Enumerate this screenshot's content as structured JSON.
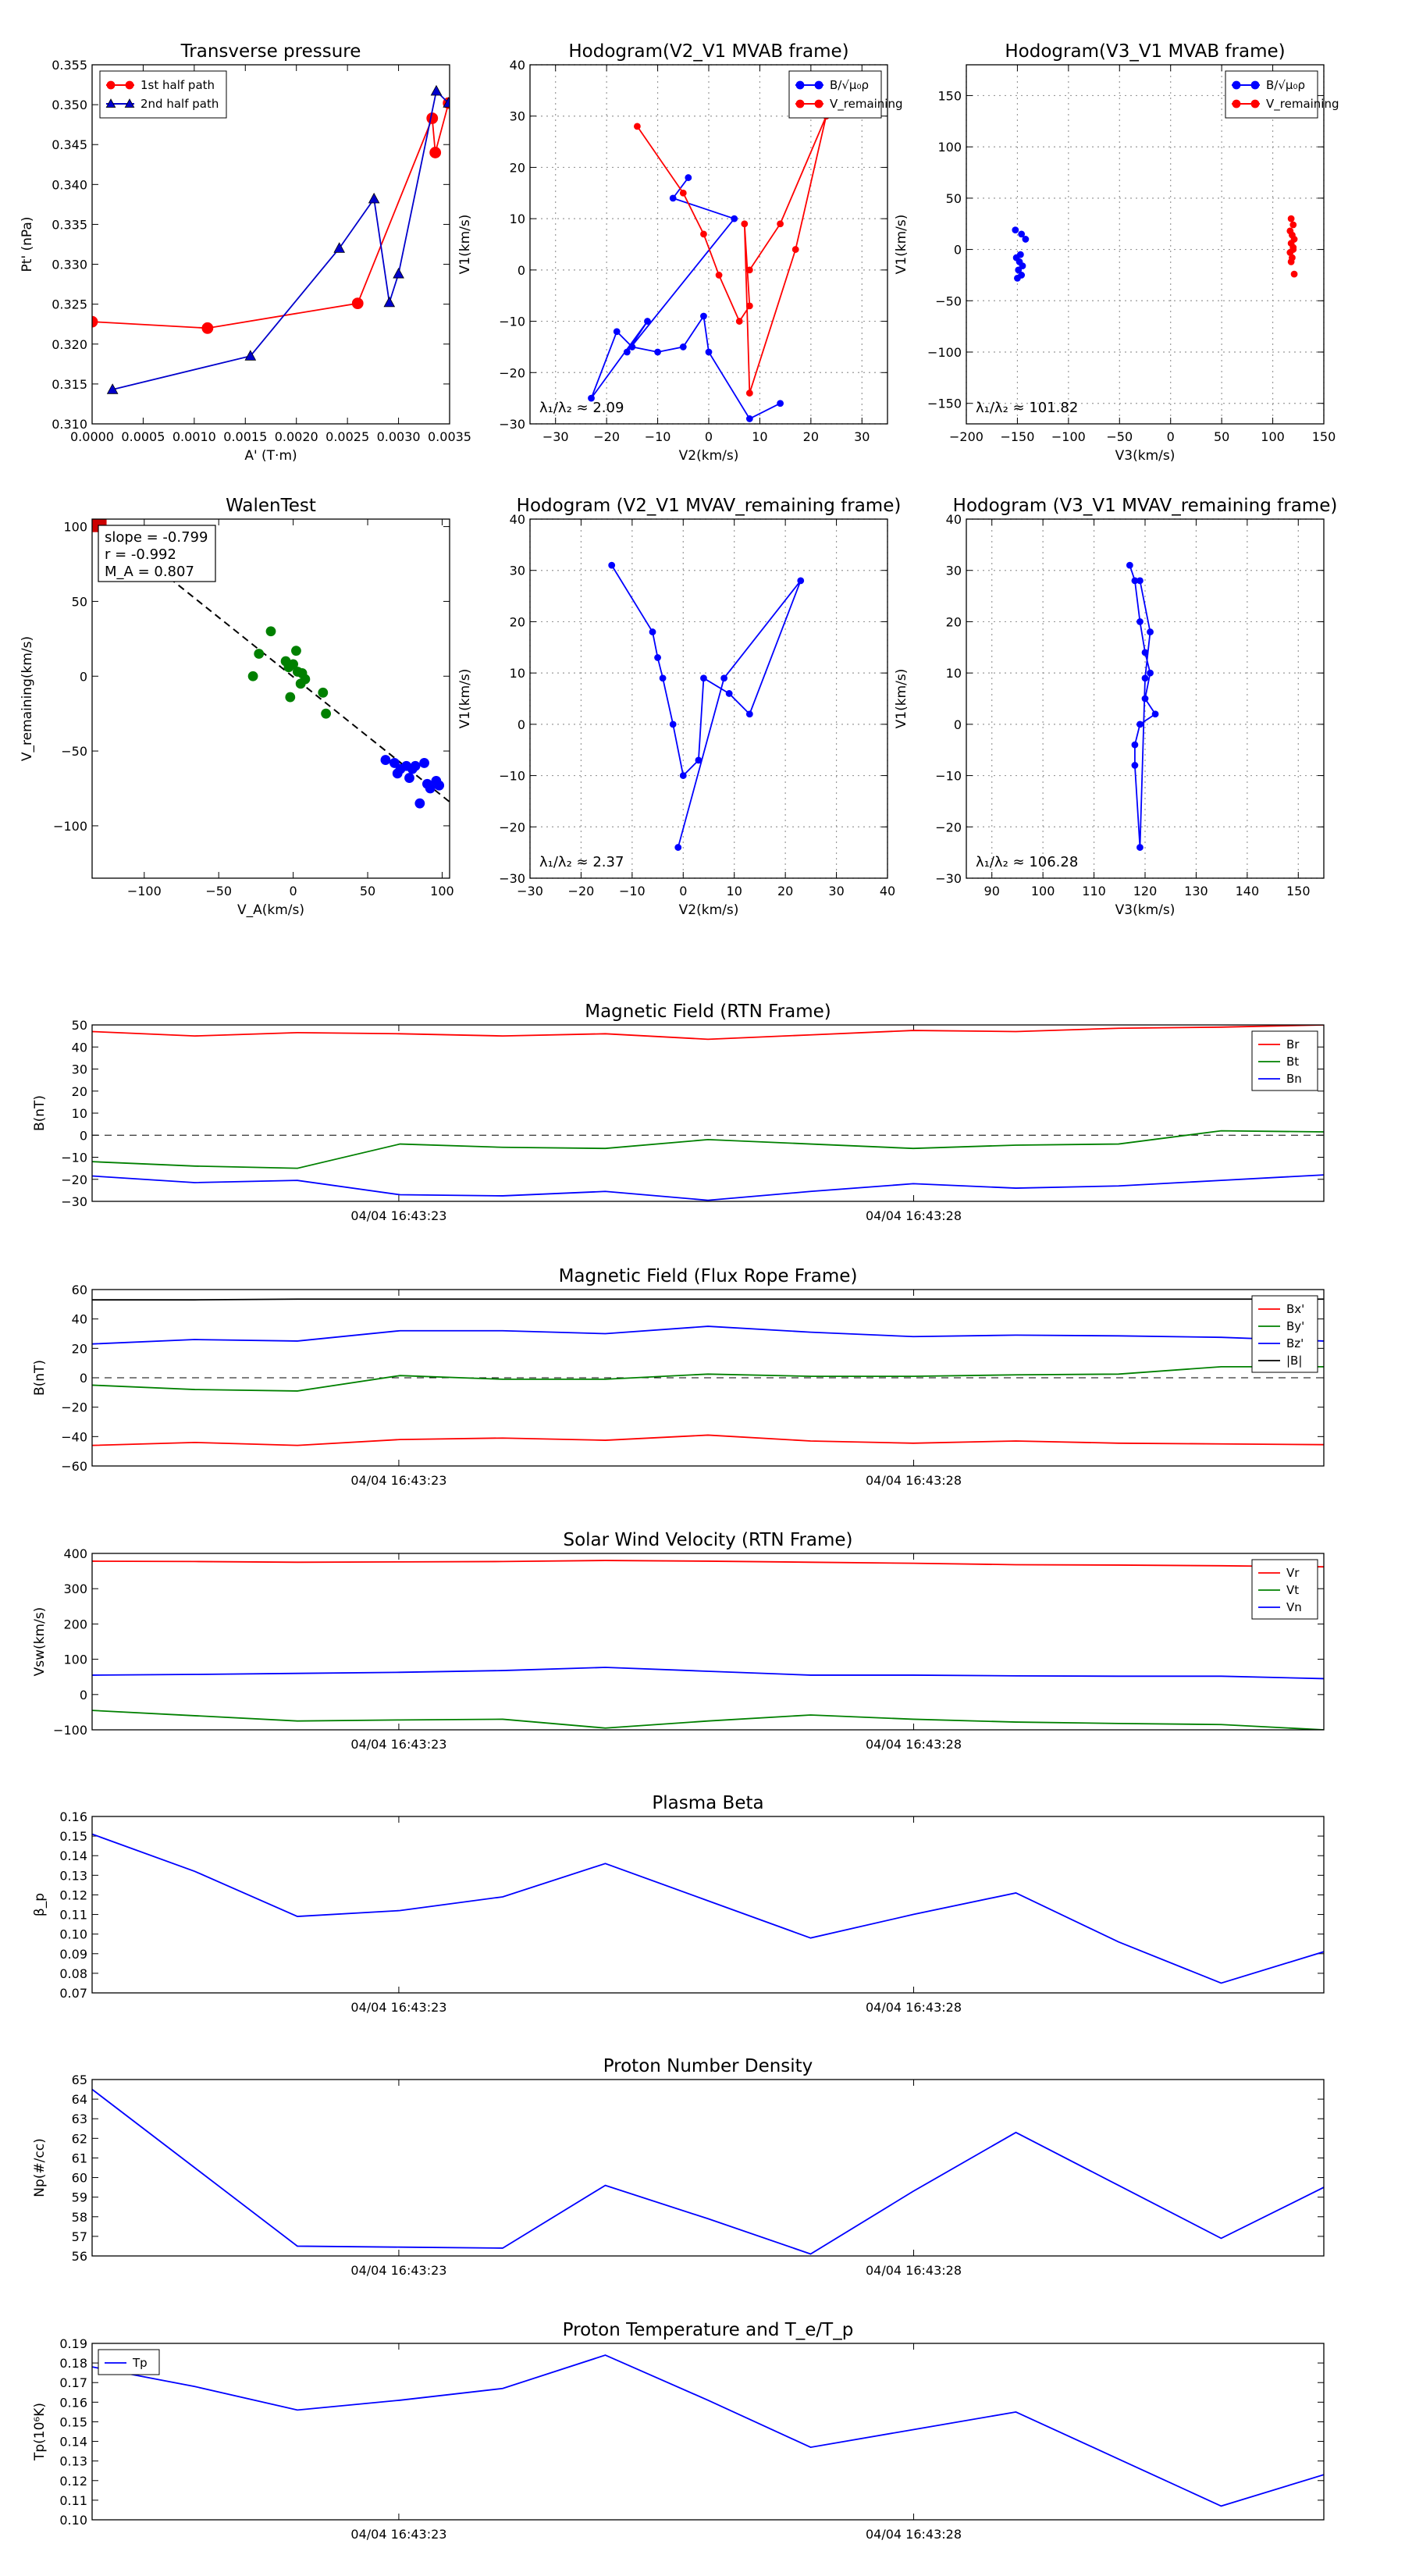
{
  "chart_data": {
    "scatter": [
      {
        "id": "pt",
        "type": "line",
        "title": "Transverse pressure",
        "xlabel": "A' (T·m)",
        "ylabel": "Pt' (nPa)",
        "xlim": [
          0,
          0.0035
        ],
        "ylim": [
          0.31,
          0.355
        ],
        "xticks": [
          "0.0000",
          "0.0005",
          "0.0010",
          "0.0015",
          "0.0020",
          "0.0025",
          "0.0030",
          "0.0035"
        ],
        "yticks": [
          "0.310",
          "0.315",
          "0.320",
          "0.325",
          "0.330",
          "0.335",
          "0.340",
          "0.345",
          "0.350",
          "0.355"
        ],
        "legend": "top-left",
        "series": [
          {
            "name": "1st half path",
            "color": "#ff0000",
            "marker": "circle",
            "x": [
              0.0,
              0.00113,
              0.0026,
              0.00333,
              0.00336,
              0.00349
            ],
            "y": [
              0.3228,
              0.322,
              0.3251,
              0.3483,
              0.344,
              0.3502
            ]
          },
          {
            "name": "2nd half path",
            "color": "#0000cc",
            "marker": "triangle",
            "x": [
              0.00349,
              0.00337,
              0.003,
              0.00291,
              0.00276,
              0.00242,
              0.00155,
              0.0002
            ],
            "y": [
              0.3502,
              0.3517,
              0.3288,
              0.3252,
              0.3382,
              0.332,
              0.3185,
              0.3143
            ]
          }
        ]
      },
      {
        "id": "hodo_v2v1",
        "type": "line",
        "title": "Hodogram(V2_V1 MVAB frame)",
        "xlabel": "V2(km/s)",
        "ylabel": "V1(km/s)",
        "xlim": [
          -35,
          35
        ],
        "ylim": [
          -30,
          40
        ],
        "xticks": [
          "−30",
          "−20",
          "−10",
          "0",
          "10",
          "20",
          "30"
        ],
        "yticks": [
          "−30",
          "−20",
          "−10",
          "0",
          "10",
          "20",
          "30",
          "40"
        ],
        "grid": true,
        "legend": "top-right",
        "note": "λ₁/λ₂ ≈ 2.09",
        "series": [
          {
            "name": "B/√μ₀ρ",
            "color": "#0000ff",
            "x": [
              -4,
              -7,
              5,
              -16,
              -12,
              -23,
              -18,
              -15,
              -10,
              -5,
              -1,
              0,
              8,
              14
            ],
            "y": [
              18,
              14,
              10,
              -16,
              -10,
              -25,
              -12,
              -15,
              -16,
              -15,
              -9,
              -16,
              -29,
              -26
            ]
          },
          {
            "name": "V_remaining",
            "color": "#ff0000",
            "x": [
              -14,
              -5,
              -1,
              2,
              6,
              8,
              7,
              8,
              17,
              23,
              14,
              8
            ],
            "y": [
              28,
              15,
              7,
              -1,
              -10,
              -7,
              9,
              -24,
              4,
              30,
              9,
              0
            ]
          }
        ]
      },
      {
        "id": "hodo_v3v1",
        "type": "scatter",
        "title": "Hodogram(V3_V1 MVAB frame)",
        "xlabel": "V3(km/s)",
        "ylabel": "V1(km/s)",
        "xlim": [
          -200,
          150
        ],
        "ylim": [
          -170,
          180
        ],
        "xticks": [
          "−200",
          "−150",
          "−100",
          "−50",
          "0",
          "50",
          "100",
          "150"
        ],
        "yticks": [
          "−150",
          "−100",
          "−50",
          "0",
          "50",
          "100",
          "150"
        ],
        "grid": true,
        "legend": "top-right",
        "note": "λ₁/λ₂ ≈ 101.82",
        "series": [
          {
            "name": "B/√μ₀ρ",
            "color": "#0000ff",
            "x": [
              -152,
              -146,
              -142,
              -151,
              -148,
              -149,
              -146,
              -150,
              -147,
              -145
            ],
            "y": [
              19,
              15,
              10,
              -8,
              -12,
              -20,
              -25,
              -28,
              -5,
              -16
            ]
          },
          {
            "name": "V_remaining",
            "color": "#ff0000",
            "x": [
              118,
              120,
              117,
              119,
              121,
              118,
              120,
              117,
              119,
              118,
              120,
              121
            ],
            "y": [
              30,
              24,
              18,
              14,
              10,
              6,
              2,
              -3,
              -8,
              -12,
              0,
              -24
            ]
          }
        ]
      },
      {
        "id": "walen",
        "type": "scatter",
        "title": "WalenTest",
        "xlabel": "V_A(km/s)",
        "ylabel": "V_remaining(km/s)",
        "xlim": [
          -135,
          105
        ],
        "ylim": [
          -135,
          105
        ],
        "xticks": [
          "−100",
          "−50",
          "0",
          "50",
          "100"
        ],
        "yticks": [
          "−100",
          "−50",
          "0",
          "50",
          "100"
        ],
        "stats": [
          "slope = -0.799",
          "r = -0.992",
          "M_A = 0.807"
        ],
        "series": [
          {
            "name": "fit",
            "color": "#000000",
            "style": "dashed",
            "x": [
              -120,
              105
            ],
            "y": [
              95,
              -84
            ]
          },
          {
            "name": "start",
            "color": "#cc0000",
            "marker": "square",
            "x": [
              -130
            ],
            "y": [
              101
            ]
          },
          {
            "name": "green",
            "color": "#008000",
            "marker": "circle",
            "x": [
              -27,
              -23,
              -15,
              -5,
              -2,
              0,
              2,
              3,
              5,
              6,
              -3,
              8,
              20,
              22
            ],
            "y": [
              0,
              15,
              30,
              10,
              -14,
              8,
              17,
              3,
              -5,
              2,
              6,
              -2,
              -11,
              -25
            ]
          },
          {
            "name": "blue",
            "color": "#0000ff",
            "marker": "circle",
            "x": [
              62,
              68,
              70,
              72,
              76,
              78,
              80,
              82,
              85,
              88,
              90,
              92,
              96,
              98
            ],
            "y": [
              -56,
              -58,
              -65,
              -62,
              -60,
              -68,
              -62,
              -60,
              -85,
              -58,
              -72,
              -75,
              -70,
              -73
            ]
          }
        ]
      },
      {
        "id": "hodo_v2v1_rem",
        "type": "line",
        "title": "Hodogram (V2_V1 MVAV_remaining frame)",
        "xlabel": "V2(km/s)",
        "ylabel": "V1(km/s)",
        "xlim": [
          -30,
          40
        ],
        "ylim": [
          -30,
          40
        ],
        "xticks": [
          "−30",
          "−20",
          "−10",
          "0",
          "10",
          "20",
          "30",
          "40"
        ],
        "yticks": [
          "−30",
          "−20",
          "−10",
          "0",
          "10",
          "20",
          "30",
          "40"
        ],
        "grid": true,
        "note": "λ₁/λ₂ ≈ 2.37",
        "series": [
          {
            "name": "V",
            "color": "#0000ff",
            "x": [
              -14,
              -6,
              -5,
              -4,
              -2,
              0,
              3,
              4,
              9,
              13,
              23,
              8,
              -1
            ],
            "y": [
              31,
              18,
              13,
              9,
              0,
              -10,
              -7,
              9,
              6,
              2,
              28,
              9,
              -24
            ]
          }
        ]
      },
      {
        "id": "hodo_v3v1_rem",
        "type": "line",
        "title": "Hodogram (V3_V1 MVAV_remaining frame)",
        "xlabel": "V3(km/s)",
        "ylabel": "V1(km/s)",
        "xlim": [
          85,
          155
        ],
        "ylim": [
          -30,
          40
        ],
        "xticks": [
          "90",
          "100",
          "110",
          "120",
          "130",
          "140",
          "150"
        ],
        "yticks": [
          "−30",
          "−20",
          "−10",
          "0",
          "10",
          "20",
          "30",
          "40"
        ],
        "grid": true,
        "note": "λ₁/λ₂ ≈ 106.28",
        "series": [
          {
            "name": "V",
            "color": "#0000ff",
            "x": [
              117,
              118,
              119,
              120,
              121,
              120,
              122,
              119,
              118,
              118,
              119,
              120,
              121,
              119
            ],
            "y": [
              31,
              28,
              20,
              14,
              10,
              5,
              2,
              0,
              -4,
              -8,
              -24,
              9,
              18,
              28
            ]
          }
        ]
      }
    ],
    "timeseries": [
      {
        "id": "b_rtn",
        "type": "line",
        "title": "Magnetic Field (RTN Frame)",
        "ylabel": "B(nT)",
        "ylim": [
          -30,
          50
        ],
        "yticks": [
          "−30",
          "−20",
          "−10",
          "0",
          "10",
          "20",
          "30",
          "40",
          "50"
        ],
        "xticklabels": [
          "04/04 16:43:23",
          "04/04 16:43:28"
        ],
        "zeroline": true,
        "legend": "right",
        "series": [
          {
            "name": "Br",
            "color": "#ff0000",
            "values": [
              47,
              45,
              46.5,
              46,
              45,
              46,
              43.5,
              45.5,
              47.5,
              47,
              48.5,
              49,
              50
            ]
          },
          {
            "name": "Bt",
            "color": "#008000",
            "values": [
              -12,
              -14,
              -15,
              -4,
              -5.5,
              -6,
              -2,
              -4,
              -6,
              -4.5,
              -4,
              2,
              1.5
            ]
          },
          {
            "name": "Bn",
            "color": "#0000ff",
            "values": [
              -18.5,
              -21.5,
              -20.5,
              -27,
              -27.5,
              -25.5,
              -29.5,
              -25.5,
              -22,
              -24,
              -23,
              -20.5,
              -18
            ]
          }
        ]
      },
      {
        "id": "b_fr",
        "type": "line",
        "title": "Magnetic Field (Flux Rope Frame)",
        "ylabel": "B(nT)",
        "ylim": [
          -60,
          60
        ],
        "yticks": [
          "−60",
          "−40",
          "−20",
          "0",
          "20",
          "40",
          "60"
        ],
        "xticklabels": [
          "04/04 16:43:23",
          "04/04 16:43:28"
        ],
        "zeroline": true,
        "legend": "right",
        "series": [
          {
            "name": "Bx'",
            "color": "#ff0000",
            "values": [
              -46,
              -44,
              -46,
              -42,
              -41,
              -42.5,
              -39,
              -43,
              -44.5,
              -43,
              -44.5,
              -45,
              -45.5
            ]
          },
          {
            "name": "By'",
            "color": "#008000",
            "values": [
              -5,
              -8,
              -9,
              1.5,
              -1,
              -1,
              2.5,
              1,
              1,
              2,
              2.5,
              7.5,
              7.5
            ]
          },
          {
            "name": "Bz'",
            "color": "#0000ff",
            "values": [
              23,
              26,
              25,
              32,
              32,
              30,
              35,
              31,
              28,
              29,
              28.5,
              27.5,
              25
            ]
          },
          {
            "name": "|B|",
            "color": "#000000",
            "values": [
              53,
              53,
              53.5,
              53.5,
              53.5,
              53.5,
              53.5,
              53.5,
              53.5,
              53.5,
              53.5,
              53.5,
              53.5
            ]
          }
        ]
      },
      {
        "id": "vsw",
        "type": "line",
        "title": "Solar Wind Velocity (RTN Frame)",
        "ylabel": "Vsw(km/s)",
        "ylim": [
          -100,
          400
        ],
        "yticks": [
          "−100",
          "0",
          "100",
          "200",
          "300",
          "400"
        ],
        "xticklabels": [
          "04/04 16:43:23",
          "04/04 16:43:28"
        ],
        "legend": "right",
        "series": [
          {
            "name": "Vr",
            "color": "#ff0000",
            "values": [
              378,
              377,
              375,
              376,
              377,
              380,
              378,
              375,
              372,
              368,
              367,
              365,
              362
            ]
          },
          {
            "name": "Vt",
            "color": "#008000",
            "values": [
              -45,
              -60,
              -75,
              -72,
              -70,
              -95,
              -75,
              -58,
              -70,
              -78,
              -82,
              -85,
              -100
            ]
          },
          {
            "name": "Vn",
            "color": "#0000ff",
            "values": [
              55,
              57,
              60,
              63,
              68,
              77,
              66,
              55,
              55,
              53,
              52,
              52,
              45
            ]
          }
        ]
      },
      {
        "id": "beta",
        "type": "line",
        "title": "Plasma Beta",
        "ylabel": "β_p",
        "ylim": [
          0.07,
          0.16
        ],
        "yticks": [
          "0.07",
          "0.08",
          "0.09",
          "0.10",
          "0.11",
          "0.12",
          "0.13",
          "0.14",
          "0.15",
          "0.16"
        ],
        "xticklabels": [
          "04/04 16:43:23",
          "04/04 16:43:28"
        ],
        "series": [
          {
            "name": "beta",
            "color": "#0000ff",
            "values": [
              0.151,
              0.132,
              0.109,
              0.112,
              0.119,
              0.136,
              0.117,
              0.098,
              0.11,
              0.121,
              0.096,
              0.075,
              0.091
            ]
          }
        ]
      },
      {
        "id": "np",
        "type": "line",
        "title": "Proton Number Density",
        "ylabel": "Np(#/cc)",
        "ylim": [
          56,
          65
        ],
        "yticks": [
          "56",
          "57",
          "58",
          "59",
          "60",
          "61",
          "62",
          "63",
          "64",
          "65"
        ],
        "xticklabels": [
          "04/04 16:43:23",
          "04/04 16:43:28"
        ],
        "series": [
          {
            "name": "Np",
            "color": "#0000ff",
            "values": [
              64.5,
              60.5,
              56.5,
              56.45,
              56.4,
              59.6,
              57.9,
              56.1,
              59.3,
              62.3,
              59.6,
              56.9,
              59.5
            ]
          }
        ]
      },
      {
        "id": "tp",
        "type": "line",
        "title": "Proton Temperature and T_e/T_p",
        "ylabel": "Tp(10⁶K)",
        "ylim": [
          0.1,
          0.19
        ],
        "yticks": [
          "0.10",
          "0.11",
          "0.12",
          "0.13",
          "0.14",
          "0.15",
          "0.16",
          "0.17",
          "0.18",
          "0.19"
        ],
        "xticklabels": [
          "04/04 16:43:23",
          "04/04 16:43:28"
        ],
        "legend": "top-left",
        "series": [
          {
            "name": "Tp",
            "color": "#0000ff",
            "values": [
              0.178,
              0.168,
              0.156,
              0.161,
              0.167,
              0.184,
              0.161,
              0.137,
              0.146,
              0.155,
              0.131,
              0.107,
              0.123
            ]
          }
        ]
      }
    ]
  }
}
